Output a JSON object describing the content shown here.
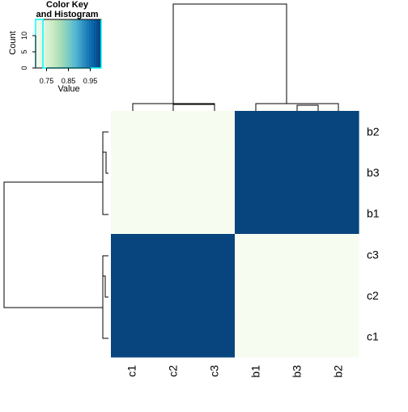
{
  "chart_data": {
    "type": "heatmap",
    "title": "",
    "row_labels": [
      "b2",
      "b3",
      "b1",
      "c3",
      "c2",
      "c1"
    ],
    "col_labels": [
      "c1",
      "c2",
      "c3",
      "b1",
      "b3",
      "b2"
    ],
    "values": [
      [
        0.7,
        0.7,
        0.7,
        1.0,
        1.0,
        1.0
      ],
      [
        0.7,
        0.7,
        0.7,
        1.0,
        1.0,
        1.0
      ],
      [
        0.7,
        0.7,
        0.7,
        1.0,
        1.0,
        1.0
      ],
      [
        1.0,
        1.0,
        1.0,
        0.7,
        0.7,
        0.7
      ],
      [
        1.0,
        1.0,
        1.0,
        0.7,
        0.7,
        0.7
      ],
      [
        1.0,
        1.0,
        1.0,
        0.7,
        0.7,
        0.7
      ]
    ],
    "colors": {
      "low": "#f7fcf0",
      "high": "#08457e"
    },
    "color_key": {
      "title_line1": "Color Key",
      "title_line2": "and Histogram",
      "xlabel": "Value",
      "ylabel": "Count",
      "x_ticks": [
        "0.75",
        "0.85",
        "0.95"
      ],
      "x_tick_values": [
        0.75,
        0.85,
        0.95
      ],
      "y_ticks": [
        "0",
        "5",
        "10"
      ],
      "y_tick_values": [
        0,
        5,
        10
      ],
      "xlim": [
        0.7,
        1.0
      ],
      "ylim": [
        0,
        15
      ],
      "palette": [
        "#f7fcf0",
        "#e0f3db",
        "#ccebc5",
        "#a8ddb5",
        "#7bccc4",
        "#4eb3d3",
        "#2b8cbe",
        "#0868ac",
        "#084081"
      ],
      "histogram": {
        "bins": [
          0.7,
          0.7333,
          1.0
        ],
        "counts": [
          18,
          0,
          18
        ],
        "line_color": "#00ffff"
      }
    },
    "row_dendrogram": "left",
    "col_dendrogram": "top"
  }
}
